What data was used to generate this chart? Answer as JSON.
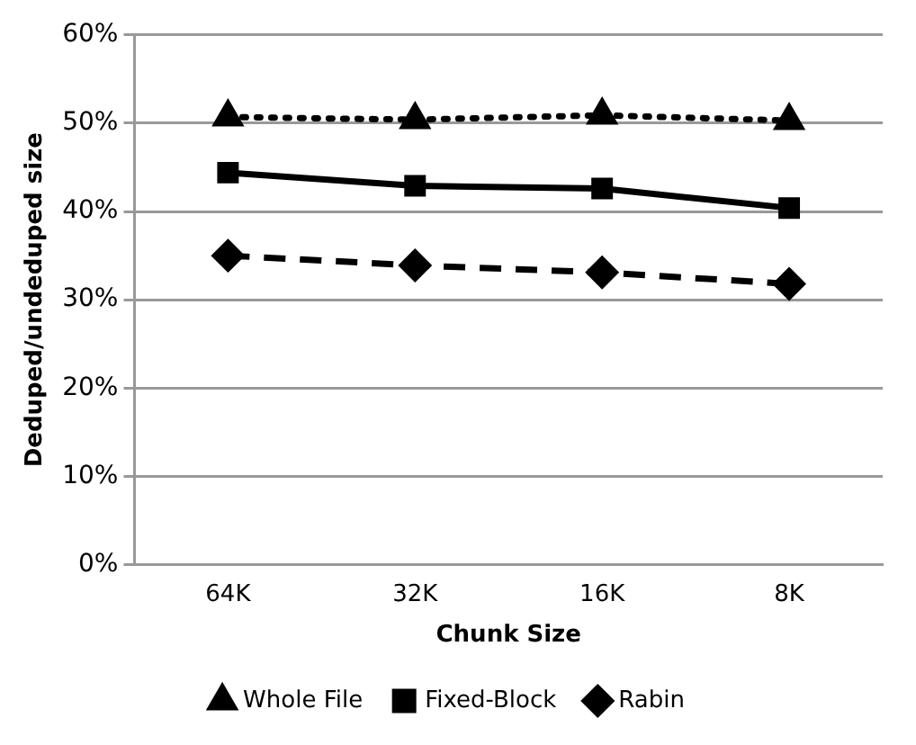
{
  "chart_data": {
    "type": "line",
    "xlabel": "Chunk Size",
    "ylabel": "Deduped/undeduped size",
    "categories": [
      "64K",
      "32K",
      "16K",
      "8K"
    ],
    "series": [
      {
        "name": "Whole File",
        "color": "#000000",
        "marker": "triangle",
        "line_style": "dotted",
        "values": [
          50.7,
          50.4,
          50.9,
          50.3
        ]
      },
      {
        "name": "Fixed-Block",
        "color": "#000000",
        "marker": "square",
        "line_style": "solid",
        "values": [
          44.4,
          42.9,
          42.6,
          40.4
        ]
      },
      {
        "name": "Rabin",
        "color": "#000000",
        "marker": "diamond",
        "line_style": "dashed",
        "values": [
          35.0,
          33.9,
          33.1,
          31.8
        ]
      }
    ],
    "ylim": [
      0,
      60
    ],
    "yticks": [
      {
        "value": 0,
        "label": "0%"
      },
      {
        "value": 10,
        "label": "10%"
      },
      {
        "value": 20,
        "label": "20%"
      },
      {
        "value": 30,
        "label": "30%"
      },
      {
        "value": 40,
        "label": "40%"
      },
      {
        "value": 50,
        "label": "50%"
      },
      {
        "value": 60,
        "label": "60%"
      }
    ],
    "grid": "y",
    "legend": "bottom"
  }
}
